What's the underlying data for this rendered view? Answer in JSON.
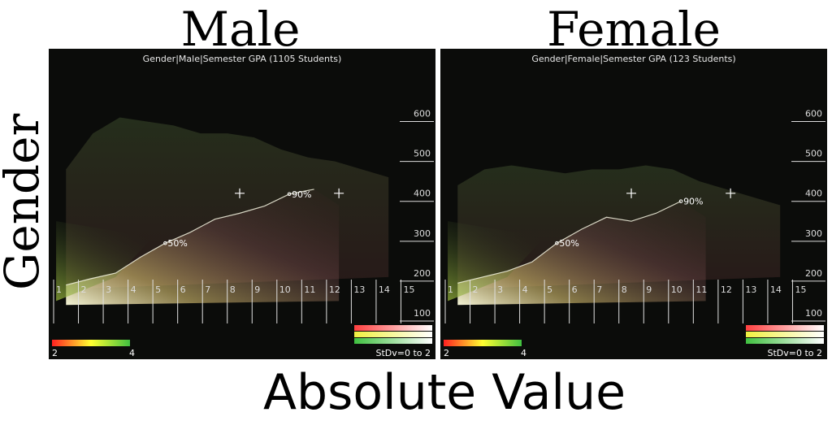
{
  "headings": {
    "left": "Male",
    "right": "Female",
    "row": "Gender",
    "bottom": "Absolute Value"
  },
  "chart_data": [
    {
      "type": "area",
      "title": "Gender|Male|Semester GPA (1105 Students)",
      "x_ticks": [
        "1",
        "2",
        "3",
        "4",
        "5",
        "6",
        "7",
        "8",
        "9",
        "10",
        "11",
        "12",
        "13",
        "14",
        "15"
      ],
      "y_ticks": [
        "100",
        "200",
        "300",
        "400",
        "500",
        "600"
      ],
      "ylim": [
        100,
        650
      ],
      "percentile_line": {
        "x": [
          1,
          2,
          3,
          4,
          5,
          6,
          7,
          8,
          9,
          10,
          11
        ],
        "y": [
          180,
          196,
          210,
          250,
          285,
          312,
          345,
          360,
          378,
          408,
          420
        ]
      },
      "annotations": [
        {
          "text": "50%",
          "x": 5,
          "y": 285
        },
        {
          "text": "90%",
          "x": 10,
          "y": 408
        }
      ],
      "crosshairs": [
        {
          "x": 8,
          "y": 410
        },
        {
          "x": 12,
          "y": 410
        }
      ],
      "color_scale": {
        "min_label": "2",
        "max_label": "4",
        "colors": [
          "#ff2020",
          "#ffff30",
          "#40c040"
        ]
      },
      "stdev_legend": {
        "label": "StDv=0 to 2",
        "colors": [
          "#ff4040",
          "#f0f040",
          "#40c040"
        ]
      }
    },
    {
      "type": "area",
      "title": "Gender|Female|Semester GPA (123 Students)",
      "x_ticks": [
        "1",
        "2",
        "3",
        "4",
        "5",
        "6",
        "7",
        "8",
        "9",
        "10",
        "11",
        "12",
        "13",
        "14",
        "15"
      ],
      "y_ticks": [
        "100",
        "200",
        "300",
        "400",
        "500",
        "600"
      ],
      "ylim": [
        100,
        650
      ],
      "percentile_line": {
        "x": [
          1,
          2,
          3,
          4,
          5,
          6,
          7,
          8,
          9,
          10
        ],
        "y": [
          185,
          200,
          215,
          238,
          285,
          320,
          350,
          340,
          360,
          390
        ]
      },
      "annotations": [
        {
          "text": "50%",
          "x": 5,
          "y": 285
        },
        {
          "text": "90%",
          "x": 10,
          "y": 390
        }
      ],
      "crosshairs": [
        {
          "x": 8,
          "y": 410
        },
        {
          "x": 12,
          "y": 410
        }
      ],
      "color_scale": {
        "min_label": "2",
        "max_label": "4",
        "colors": [
          "#ff2020",
          "#ffff30",
          "#40c040"
        ]
      },
      "stdev_legend": {
        "label": "StDv=0 to 2",
        "colors": [
          "#ff4040",
          "#f0f040",
          "#40c040"
        ]
      }
    }
  ]
}
